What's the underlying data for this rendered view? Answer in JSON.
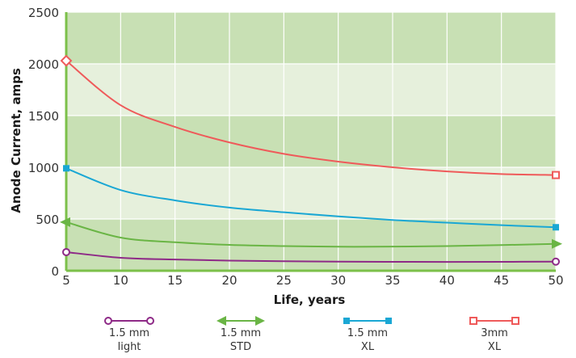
{
  "chart_data": {
    "type": "line",
    "xlabel": "Life, years",
    "ylabel": "Anode Current, amps",
    "xlim": [
      5,
      50
    ],
    "ylim": [
      0,
      2500
    ],
    "xticks": [
      5,
      10,
      15,
      20,
      25,
      30,
      35,
      40,
      45,
      50
    ],
    "yticks": [
      0,
      500,
      1000,
      1500,
      2000,
      2500
    ],
    "grid": true,
    "legend_position": "bottom",
    "band_colors": [
      "#c8e0b4",
      "#e6f0dc"
    ],
    "frame_color": "#7cc04a",
    "series": [
      {
        "label_lines": [
          "1.5 mm",
          "light"
        ],
        "color": "#8e2a87",
        "marker": "circle-open",
        "endpoint_marker": "circle-open",
        "x": [
          5,
          10,
          15,
          20,
          25,
          30,
          35,
          40,
          45,
          50
        ],
        "values": [
          180,
          125,
          108,
          98,
          92,
          88,
          86,
          85,
          86,
          88
        ]
      },
      {
        "label_lines": [
          "1.5 mm",
          "STD"
        ],
        "color": "#6ab545",
        "marker": "arrow",
        "endpoint_marker": "arrow",
        "x": [
          5,
          10,
          15,
          20,
          25,
          30,
          35,
          40,
          45,
          50
        ],
        "values": [
          470,
          320,
          275,
          250,
          238,
          232,
          233,
          238,
          248,
          260
        ]
      },
      {
        "label_lines": [
          "1.5 mm",
          "XL"
        ],
        "color": "#1aa7d4",
        "marker": "square-filled",
        "endpoint_marker": "square-filled",
        "x": [
          5,
          10,
          15,
          20,
          25,
          30,
          35,
          40,
          45,
          50
        ],
        "values": [
          990,
          780,
          680,
          610,
          565,
          525,
          490,
          465,
          440,
          420
        ]
      },
      {
        "label_lines": [
          "3mm",
          "XL"
        ],
        "color": "#ef5a5a",
        "marker": "square-open",
        "endpoint_marker": "square-open",
        "x": [
          5,
          10,
          15,
          20,
          25,
          30,
          35,
          40,
          45,
          50
        ],
        "values": [
          2030,
          1600,
          1390,
          1240,
          1130,
          1055,
          1000,
          960,
          935,
          925
        ]
      }
    ]
  }
}
